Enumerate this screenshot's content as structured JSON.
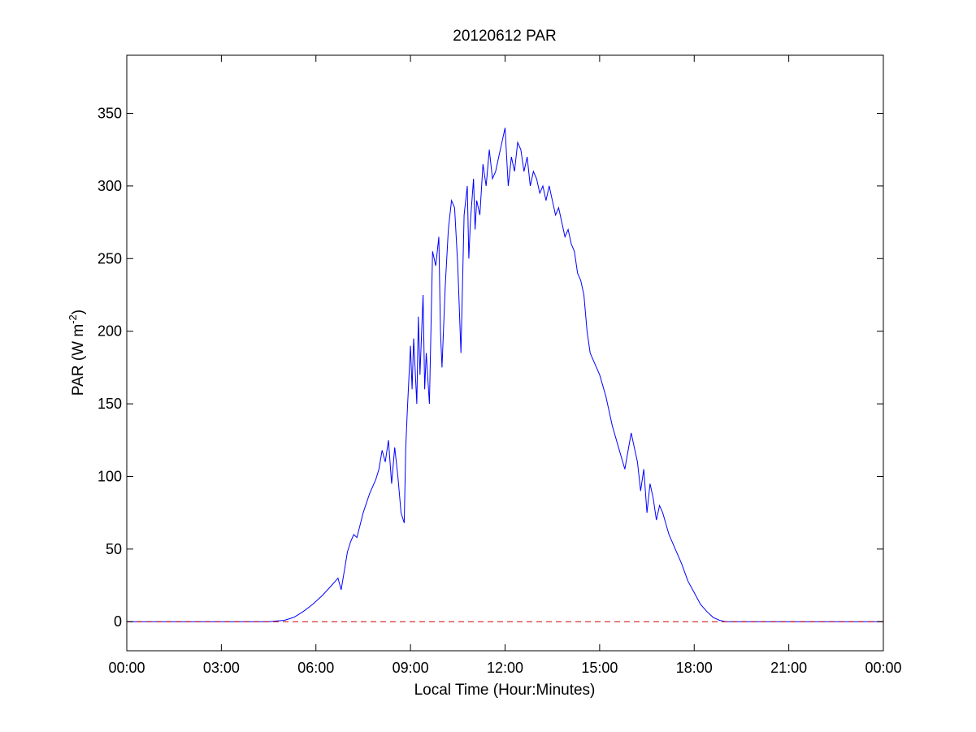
{
  "chart_data": {
    "type": "line",
    "title": "20120612 PAR",
    "xlabel": "Local Time (Hour:Minutes)",
    "ylabel": "PAR (W m-2)",
    "ylabel_parts": {
      "main": "PAR (W m",
      "sup": "-2",
      "close": ")"
    },
    "xlim": [
      0,
      24
    ],
    "ylim": [
      -20,
      390
    ],
    "x_ticks": [
      0,
      3,
      6,
      9,
      12,
      15,
      18,
      21,
      24
    ],
    "x_tick_labels": [
      "00:00",
      "03:00",
      "06:00",
      "09:00",
      "12:00",
      "15:00",
      "18:00",
      "21:00",
      "00:00"
    ],
    "y_ticks": [
      0,
      50,
      100,
      150,
      200,
      250,
      300,
      350
    ],
    "y_tick_labels": [
      "0",
      "50",
      "100",
      "150",
      "200",
      "250",
      "300",
      "350"
    ],
    "grid": false,
    "legend": "none",
    "series": [
      {
        "color": "#0000ff",
        "style": "solid",
        "x": [
          0,
          4.5,
          5.0,
          5.3,
          5.6,
          5.9,
          6.2,
          6.5,
          6.7,
          6.8,
          6.9,
          7.0,
          7.1,
          7.2,
          7.3,
          7.5,
          7.7,
          7.9,
          8.0,
          8.1,
          8.2,
          8.3,
          8.4,
          8.5,
          8.6,
          8.7,
          8.8,
          8.85,
          8.9,
          9.0,
          9.05,
          9.1,
          9.2,
          9.25,
          9.3,
          9.4,
          9.45,
          9.5,
          9.6,
          9.7,
          9.8,
          9.9,
          9.95,
          10.0,
          10.1,
          10.2,
          10.3,
          10.4,
          10.5,
          10.6,
          10.7,
          10.8,
          10.85,
          10.9,
          11.0,
          11.05,
          11.1,
          11.2,
          11.3,
          11.4,
          11.5,
          11.6,
          11.7,
          11.8,
          11.9,
          12.0,
          12.1,
          12.2,
          12.3,
          12.4,
          12.5,
          12.6,
          12.7,
          12.8,
          12.9,
          13.0,
          13.1,
          13.2,
          13.3,
          13.4,
          13.5,
          13.6,
          13.7,
          13.8,
          13.9,
          14.0,
          14.1,
          14.2,
          14.3,
          14.4,
          14.5,
          14.6,
          14.7,
          14.8,
          14.9,
          15.0,
          15.2,
          15.4,
          15.6,
          15.8,
          16.0,
          16.1,
          16.2,
          16.3,
          16.4,
          16.5,
          16.6,
          16.7,
          16.8,
          16.9,
          17.0,
          17.2,
          17.4,
          17.6,
          17.8,
          18.0,
          18.2,
          18.4,
          18.6,
          18.8,
          19.0,
          19.2,
          19.4,
          19.6,
          24
        ],
        "y": [
          0,
          0,
          1,
          3,
          7,
          12,
          18,
          25,
          30,
          22,
          35,
          48,
          55,
          60,
          58,
          75,
          88,
          98,
          105,
          118,
          110,
          125,
          95,
          120,
          100,
          75,
          68,
          120,
          145,
          190,
          160,
          195,
          150,
          210,
          170,
          225,
          160,
          185,
          150,
          255,
          245,
          265,
          200,
          175,
          230,
          270,
          290,
          285,
          245,
          185,
          280,
          300,
          250,
          275,
          305,
          270,
          290,
          280,
          315,
          300,
          325,
          305,
          310,
          320,
          330,
          340,
          300,
          320,
          310,
          330,
          325,
          310,
          320,
          300,
          310,
          305,
          295,
          300,
          290,
          300,
          290,
          280,
          285,
          275,
          265,
          270,
          260,
          255,
          240,
          235,
          225,
          200,
          185,
          180,
          175,
          170,
          155,
          135,
          120,
          105,
          130,
          120,
          110,
          90,
          105,
          75,
          95,
          85,
          70,
          80,
          75,
          60,
          50,
          40,
          28,
          20,
          12,
          7,
          3,
          1,
          0,
          0,
          0,
          0,
          0
        ]
      },
      {
        "color": "#cc0000",
        "style": "dashed",
        "x": [
          0,
          24
        ],
        "y": [
          0,
          0
        ]
      }
    ]
  }
}
